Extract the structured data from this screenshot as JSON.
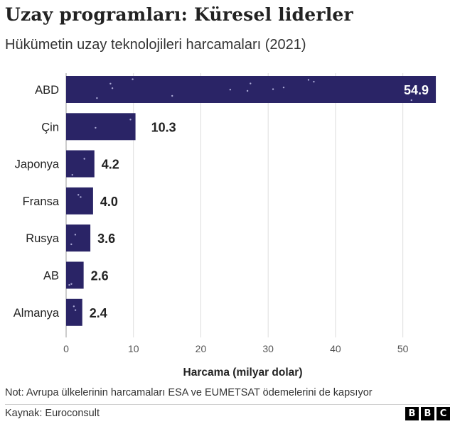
{
  "title": "Uzay programları: Küresel liderler",
  "subtitle": "Hükümetin uzay teknolojileri harcamaları (2021)",
  "note": "Not: Avrupa ülkelerinin harcamaları ESA ve EUMETSAT ödemelerini de kapsıyor",
  "source": "Kaynak: Euroconsult",
  "logo_letters": [
    "B",
    "B",
    "C"
  ],
  "colors": {
    "bar": "#2a2466",
    "label_inside": "#ffffff",
    "label_outside": "#222222",
    "star": "#c9c9f0"
  },
  "chart_data": {
    "type": "bar",
    "orientation": "horizontal",
    "categories": [
      "ABD",
      "Çin",
      "Japonya",
      "Fransa",
      "Rusya",
      "AB",
      "Almanya"
    ],
    "values": [
      54.9,
      10.3,
      4.2,
      4.0,
      3.6,
      2.6,
      2.4
    ],
    "value_labels": [
      "54.9",
      "10.3",
      "4.2",
      "4.0",
      "3.6",
      "2.6",
      "2.4"
    ],
    "xlabel": "Harcama (milyar dolar)",
    "xlim": [
      0,
      55
    ],
    "xticks": [
      0,
      10,
      20,
      30,
      40,
      50
    ],
    "grid": true
  }
}
